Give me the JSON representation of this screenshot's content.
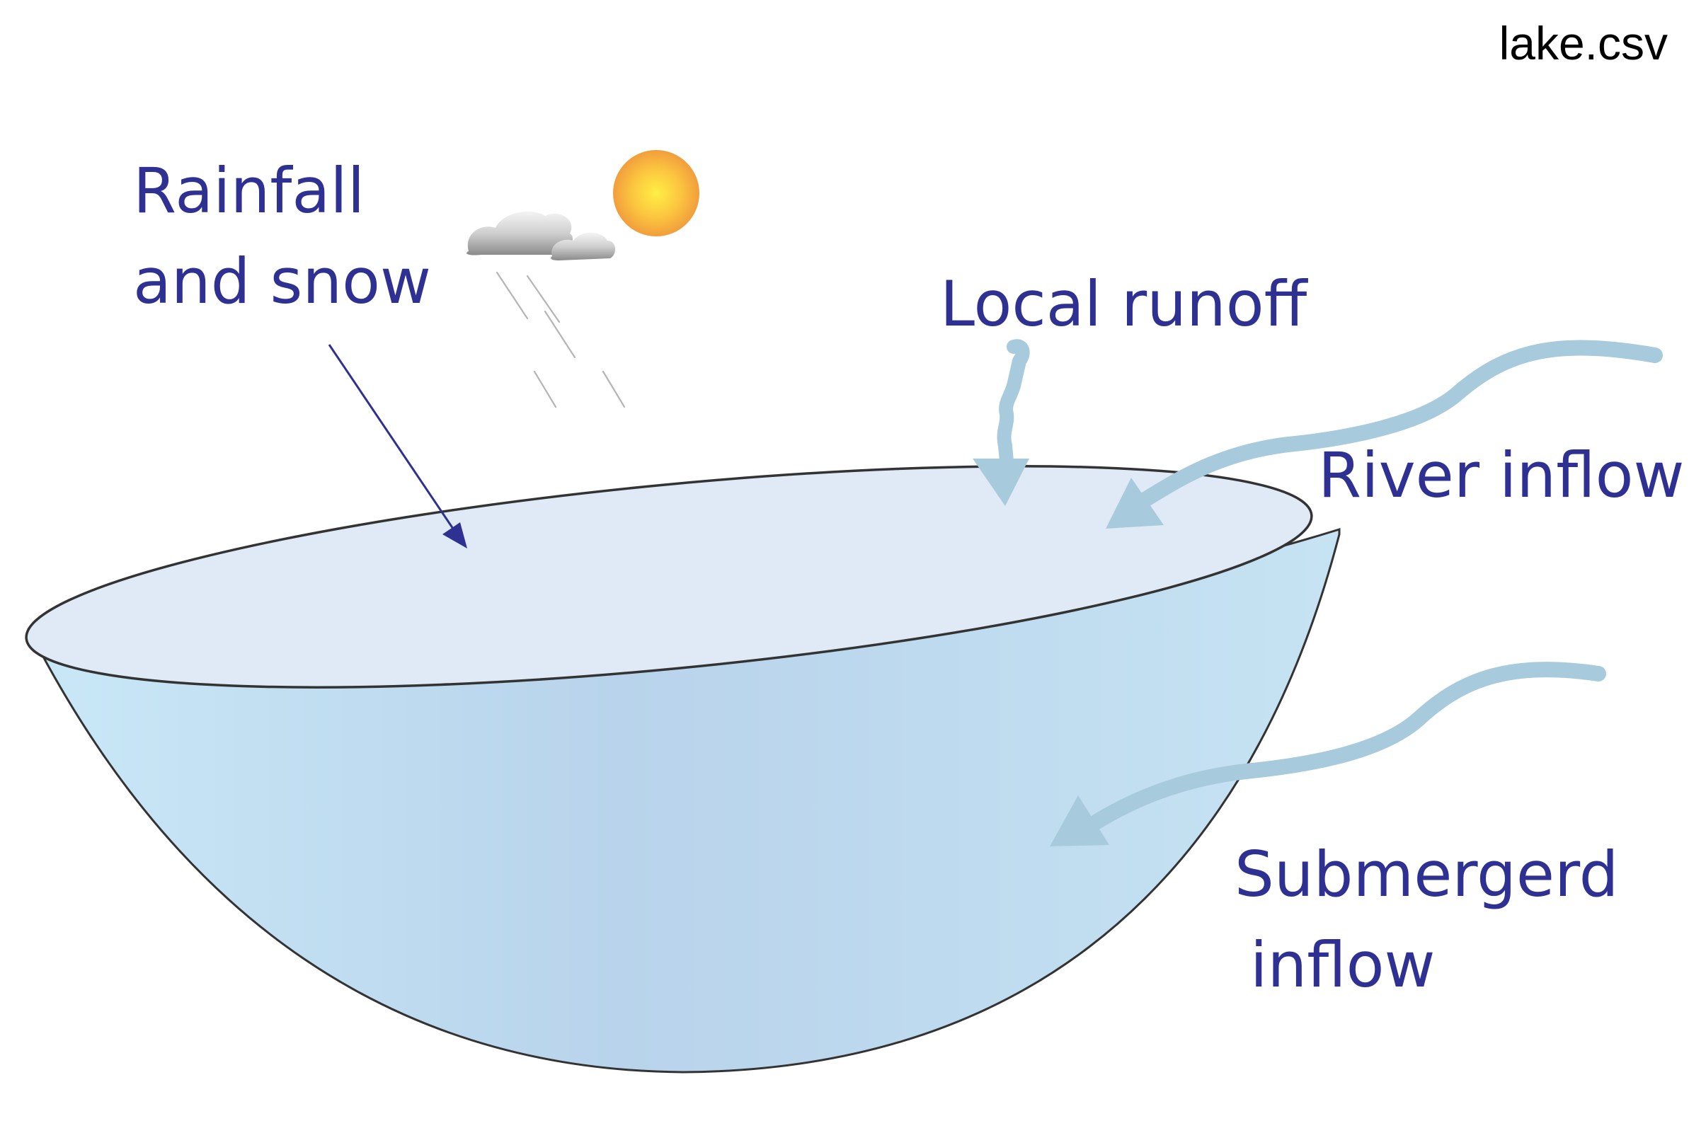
{
  "file": {
    "name": "lake.csv"
  },
  "labels": {
    "rainfall": {
      "line1": "Rainfall",
      "line2": "and snow"
    },
    "local_runoff": "Local runoff",
    "river_inflow": "River inflow",
    "submerged": {
      "line1": "Submergerd",
      "line2": "inflow"
    }
  },
  "colors": {
    "label_text": "#2e3192",
    "lake_surface": "#dfeaf6",
    "lake_body_light": "#c6e6f6",
    "lake_body_mid": "#b8d3eb",
    "flow_arrow": "#a8cadd",
    "sun_core": "#ffe94a",
    "sun_edge": "#f3a53c",
    "outline": "#333333"
  }
}
